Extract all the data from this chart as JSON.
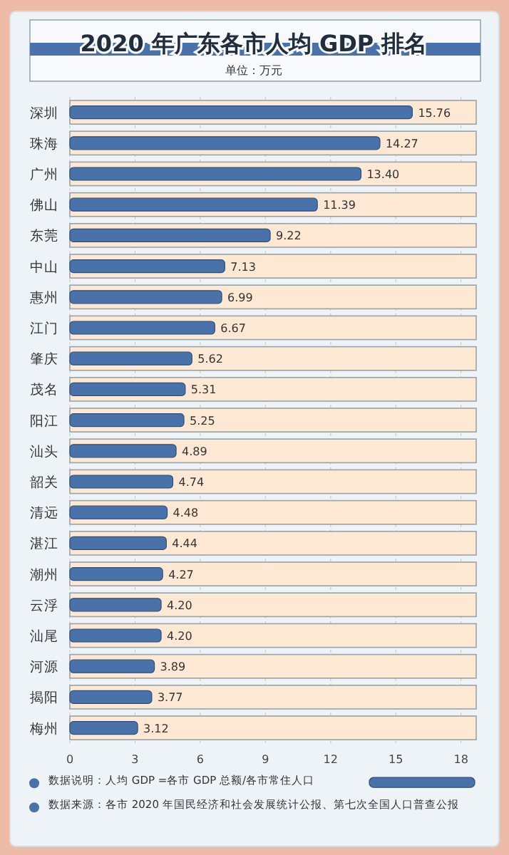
{
  "chart_data": {
    "type": "bar",
    "orientation": "horizontal",
    "title": "2020 年广东各市人均 GDP 排名",
    "subtitle": "单位：万元",
    "categories": [
      "深圳",
      "珠海",
      "广州",
      "佛山",
      "东莞",
      "中山",
      "惠州",
      "江门",
      "肇庆",
      "茂名",
      "阳江",
      "汕头",
      "韶关",
      "清远",
      "湛江",
      "潮州",
      "云浮",
      "汕尾",
      "河源",
      "揭阳",
      "梅州"
    ],
    "series": [
      {
        "color": "#fde8d3",
        "values": [
          18.7,
          18.7,
          18.7,
          18.7,
          18.7,
          18.7,
          18.7,
          18.7,
          18.7,
          18.7,
          18.7,
          18.7,
          18.7,
          18.7,
          18.7,
          18.7,
          18.7,
          18.7,
          18.7,
          18.7,
          18.7
        ]
      },
      {
        "color": "#4a72aa",
        "values": [
          15.76,
          14.27,
          13.4,
          11.39,
          9.22,
          7.13,
          6.99,
          6.67,
          5.62,
          5.31,
          5.25,
          4.89,
          4.74,
          4.48,
          4.44,
          4.27,
          4.2,
          4.2,
          3.89,
          3.77,
          3.12
        ],
        "value_labels": [
          "15.76",
          "14.27",
          "13.40",
          "11.39",
          "9.22",
          "7.13",
          "6.99",
          "6.67",
          "5.62",
          "5.31",
          "5.25",
          "4.89",
          "4.74",
          "4.48",
          "4.44",
          "4.27",
          "4.20",
          "4.20",
          "3.89",
          "3.77",
          "3.12"
        ]
      }
    ],
    "xlim": [
      0,
      18.7
    ],
    "xticks": [
      0,
      3,
      6,
      9,
      12,
      15,
      18
    ],
    "grid": "x",
    "annotations": [
      "数据说明：人均 GDP =各市 GDP 总额/各市常住人口",
      "数据来源：各市 2020 年国民经济和社会发展统计公报、第七次全国人口普查公报"
    ]
  }
}
